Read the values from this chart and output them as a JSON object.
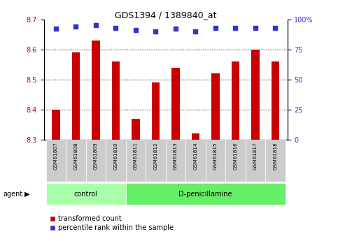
{
  "title": "GDS1394 / 1389840_at",
  "samples": [
    "GSM61807",
    "GSM61808",
    "GSM61809",
    "GSM61810",
    "GSM61811",
    "GSM61812",
    "GSM61813",
    "GSM61814",
    "GSM61815",
    "GSM61816",
    "GSM61817",
    "GSM61818"
  ],
  "transformed_count": [
    8.4,
    8.59,
    8.63,
    8.56,
    8.37,
    8.49,
    8.54,
    8.32,
    8.52,
    8.56,
    8.6,
    8.56
  ],
  "percentile_rank": [
    92,
    94,
    95,
    93,
    91,
    90,
    92,
    90,
    93,
    93,
    93,
    93
  ],
  "ylim_left": [
    8.3,
    8.7
  ],
  "ylim_right": [
    0,
    100
  ],
  "yticks_left": [
    8.3,
    8.4,
    8.5,
    8.6,
    8.7
  ],
  "yticks_right": [
    0,
    25,
    50,
    75,
    100
  ],
  "grid_yticks": [
    8.4,
    8.5,
    8.6
  ],
  "bar_color": "#cc0000",
  "dot_color": "#3333cc",
  "bar_bottom": 8.3,
  "control_indices": [
    0,
    1,
    2,
    3
  ],
  "treatment_indices": [
    4,
    5,
    6,
    7,
    8,
    9,
    10,
    11
  ],
  "control_label": "control",
  "treatment_label": "D-penicillamine",
  "agent_label": "agent",
  "legend_bar_label": "transformed count",
  "legend_dot_label": "percentile rank within the sample",
  "control_color": "#aaffaa",
  "treatment_color": "#66ee66",
  "tick_label_color_left": "#cc0000",
  "tick_label_color_right": "#3333cc",
  "grid_color": "#000000",
  "plot_bg_color": "#ffffff",
  "sample_box_color": "#cccccc",
  "bar_width": 0.4
}
